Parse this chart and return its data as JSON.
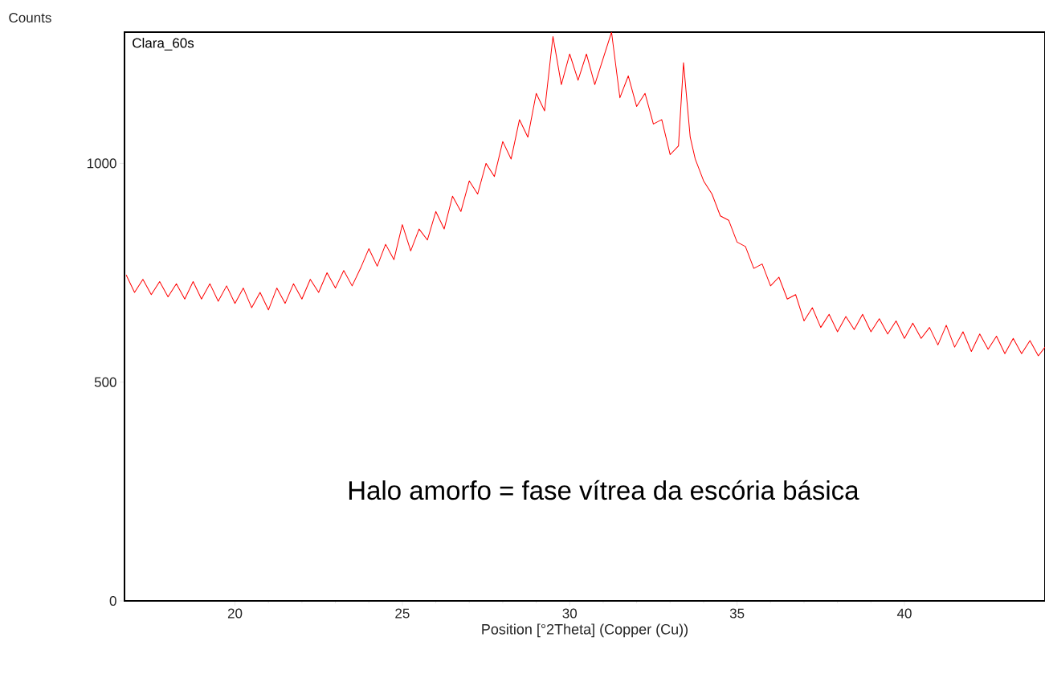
{
  "chart_data": {
    "type": "line",
    "xlabel": "Position [°2Theta] (Copper (Cu))",
    "ylabel": "Counts",
    "annotations": [
      "Clara_60s",
      "Halo amorfo = fase vítrea da escória básica"
    ],
    "xlim": [
      16.7,
      44.2
    ],
    "ylim": [
      0,
      1300
    ],
    "xticks": [
      20,
      25,
      30,
      35,
      40
    ],
    "yticks": [
      0,
      500,
      1000
    ],
    "color": "#ff0000",
    "x": [
      16.75,
      17,
      17.25,
      17.5,
      17.75,
      18,
      18.25,
      18.5,
      18.75,
      19,
      19.25,
      19.5,
      19.75,
      20,
      20.25,
      20.5,
      20.75,
      21,
      21.25,
      21.5,
      21.75,
      22,
      22.25,
      22.5,
      22.75,
      23,
      23.25,
      23.5,
      23.75,
      24,
      24.25,
      24.5,
      24.75,
      25,
      25.25,
      25.5,
      25.75,
      26,
      26.25,
      26.5,
      26.75,
      27,
      27.25,
      27.5,
      27.75,
      28,
      28.25,
      28.5,
      28.75,
      29,
      29.25,
      29.5,
      29.75,
      30,
      30.25,
      30.5,
      30.75,
      31,
      31.25,
      31.5,
      31.75,
      32,
      32.25,
      32.5,
      32.75,
      33,
      33.25,
      33.4,
      33.6,
      33.75,
      34,
      34.25,
      34.5,
      34.75,
      35,
      35.25,
      35.5,
      35.75,
      36,
      36.25,
      36.5,
      36.75,
      37,
      37.25,
      37.5,
      37.75,
      38,
      38.25,
      38.5,
      38.75,
      39,
      39.25,
      39.5,
      39.75,
      40,
      40.25,
      40.5,
      40.75,
      41,
      41.25,
      41.5,
      41.75,
      42,
      42.25,
      42.5,
      42.75,
      43,
      43.25,
      43.5,
      43.75,
      44,
      44.2
    ],
    "values": [
      745,
      705,
      735,
      700,
      730,
      695,
      725,
      690,
      730,
      690,
      725,
      685,
      720,
      680,
      715,
      670,
      705,
      665,
      715,
      680,
      725,
      690,
      735,
      705,
      750,
      715,
      755,
      720,
      760,
      805,
      765,
      815,
      780,
      860,
      800,
      850,
      825,
      890,
      850,
      925,
      890,
      960,
      930,
      1000,
      970,
      1050,
      1010,
      1100,
      1060,
      1160,
      1120,
      1290,
      1180,
      1250,
      1190,
      1250,
      1180,
      1240,
      1300,
      1150,
      1200,
      1130,
      1160,
      1090,
      1100,
      1020,
      1040,
      1230,
      1060,
      1010,
      960,
      930,
      880,
      870,
      820,
      810,
      760,
      770,
      720,
      740,
      690,
      700,
      640,
      670,
      625,
      655,
      615,
      650,
      620,
      655,
      615,
      645,
      610,
      640,
      600,
      635,
      600,
      625,
      585,
      630,
      580,
      615,
      570,
      610,
      575,
      605,
      565,
      600,
      565,
      595,
      560,
      580
    ]
  }
}
